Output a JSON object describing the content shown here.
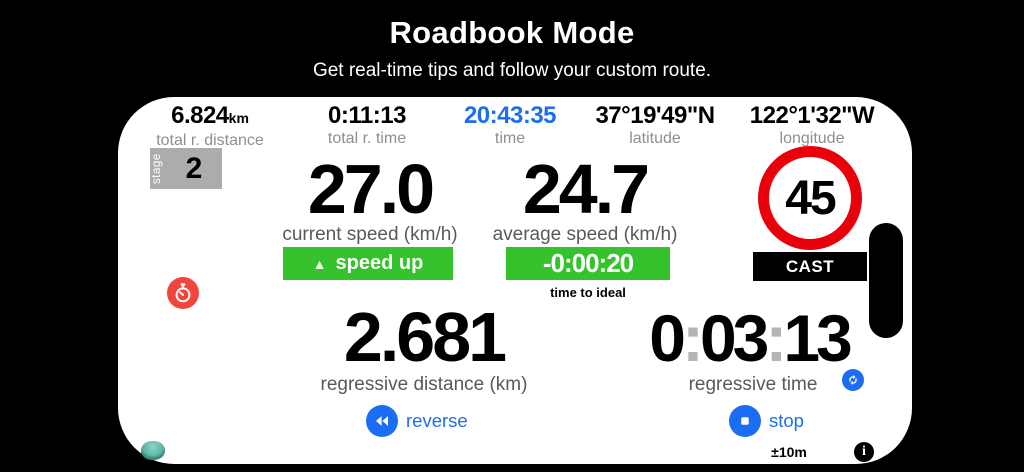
{
  "header": {
    "title": "Roadbook Mode",
    "subtitle": "Get real-time tips and follow your custom route."
  },
  "top_stats": {
    "total_distance": {
      "value": "6.824",
      "unit": "km",
      "label": "total r. distance"
    },
    "total_time": {
      "value": "0:11:13",
      "label": "total r. time"
    },
    "clock": {
      "value": "20:43:35",
      "label": "time"
    },
    "latitude": {
      "value": "37°19'49\"N",
      "label": "latitude"
    },
    "longitude": {
      "value": "122°1'32\"W",
      "label": "longitude"
    }
  },
  "stage": {
    "label": "stage",
    "number": "2"
  },
  "speeds": {
    "current": {
      "value": "27.0",
      "label": "current speed (km/h)"
    },
    "average": {
      "value": "24.7",
      "label": "average speed (km/h)"
    }
  },
  "speed_limit": {
    "value": "45"
  },
  "advice": {
    "icon_glyph": "▲",
    "label": "speed up"
  },
  "time_to_ideal": {
    "value": "-0:00:20",
    "label": "time to ideal"
  },
  "cast": {
    "label": "CAST"
  },
  "regressive": {
    "distance": {
      "value": "2.681",
      "label": "regressive distance (km)"
    },
    "time": {
      "value": "0:03:13",
      "label": "regressive time"
    }
  },
  "controls": {
    "reverse_label": "reverse",
    "stop_label": "stop"
  },
  "footer": {
    "accuracy": "±10m",
    "info_glyph": "i"
  },
  "colors": {
    "accent_blue": "#1b6ef3",
    "accent_green": "#35c32d",
    "alert_red": "#f4453c",
    "sign_red": "#e8000b"
  }
}
